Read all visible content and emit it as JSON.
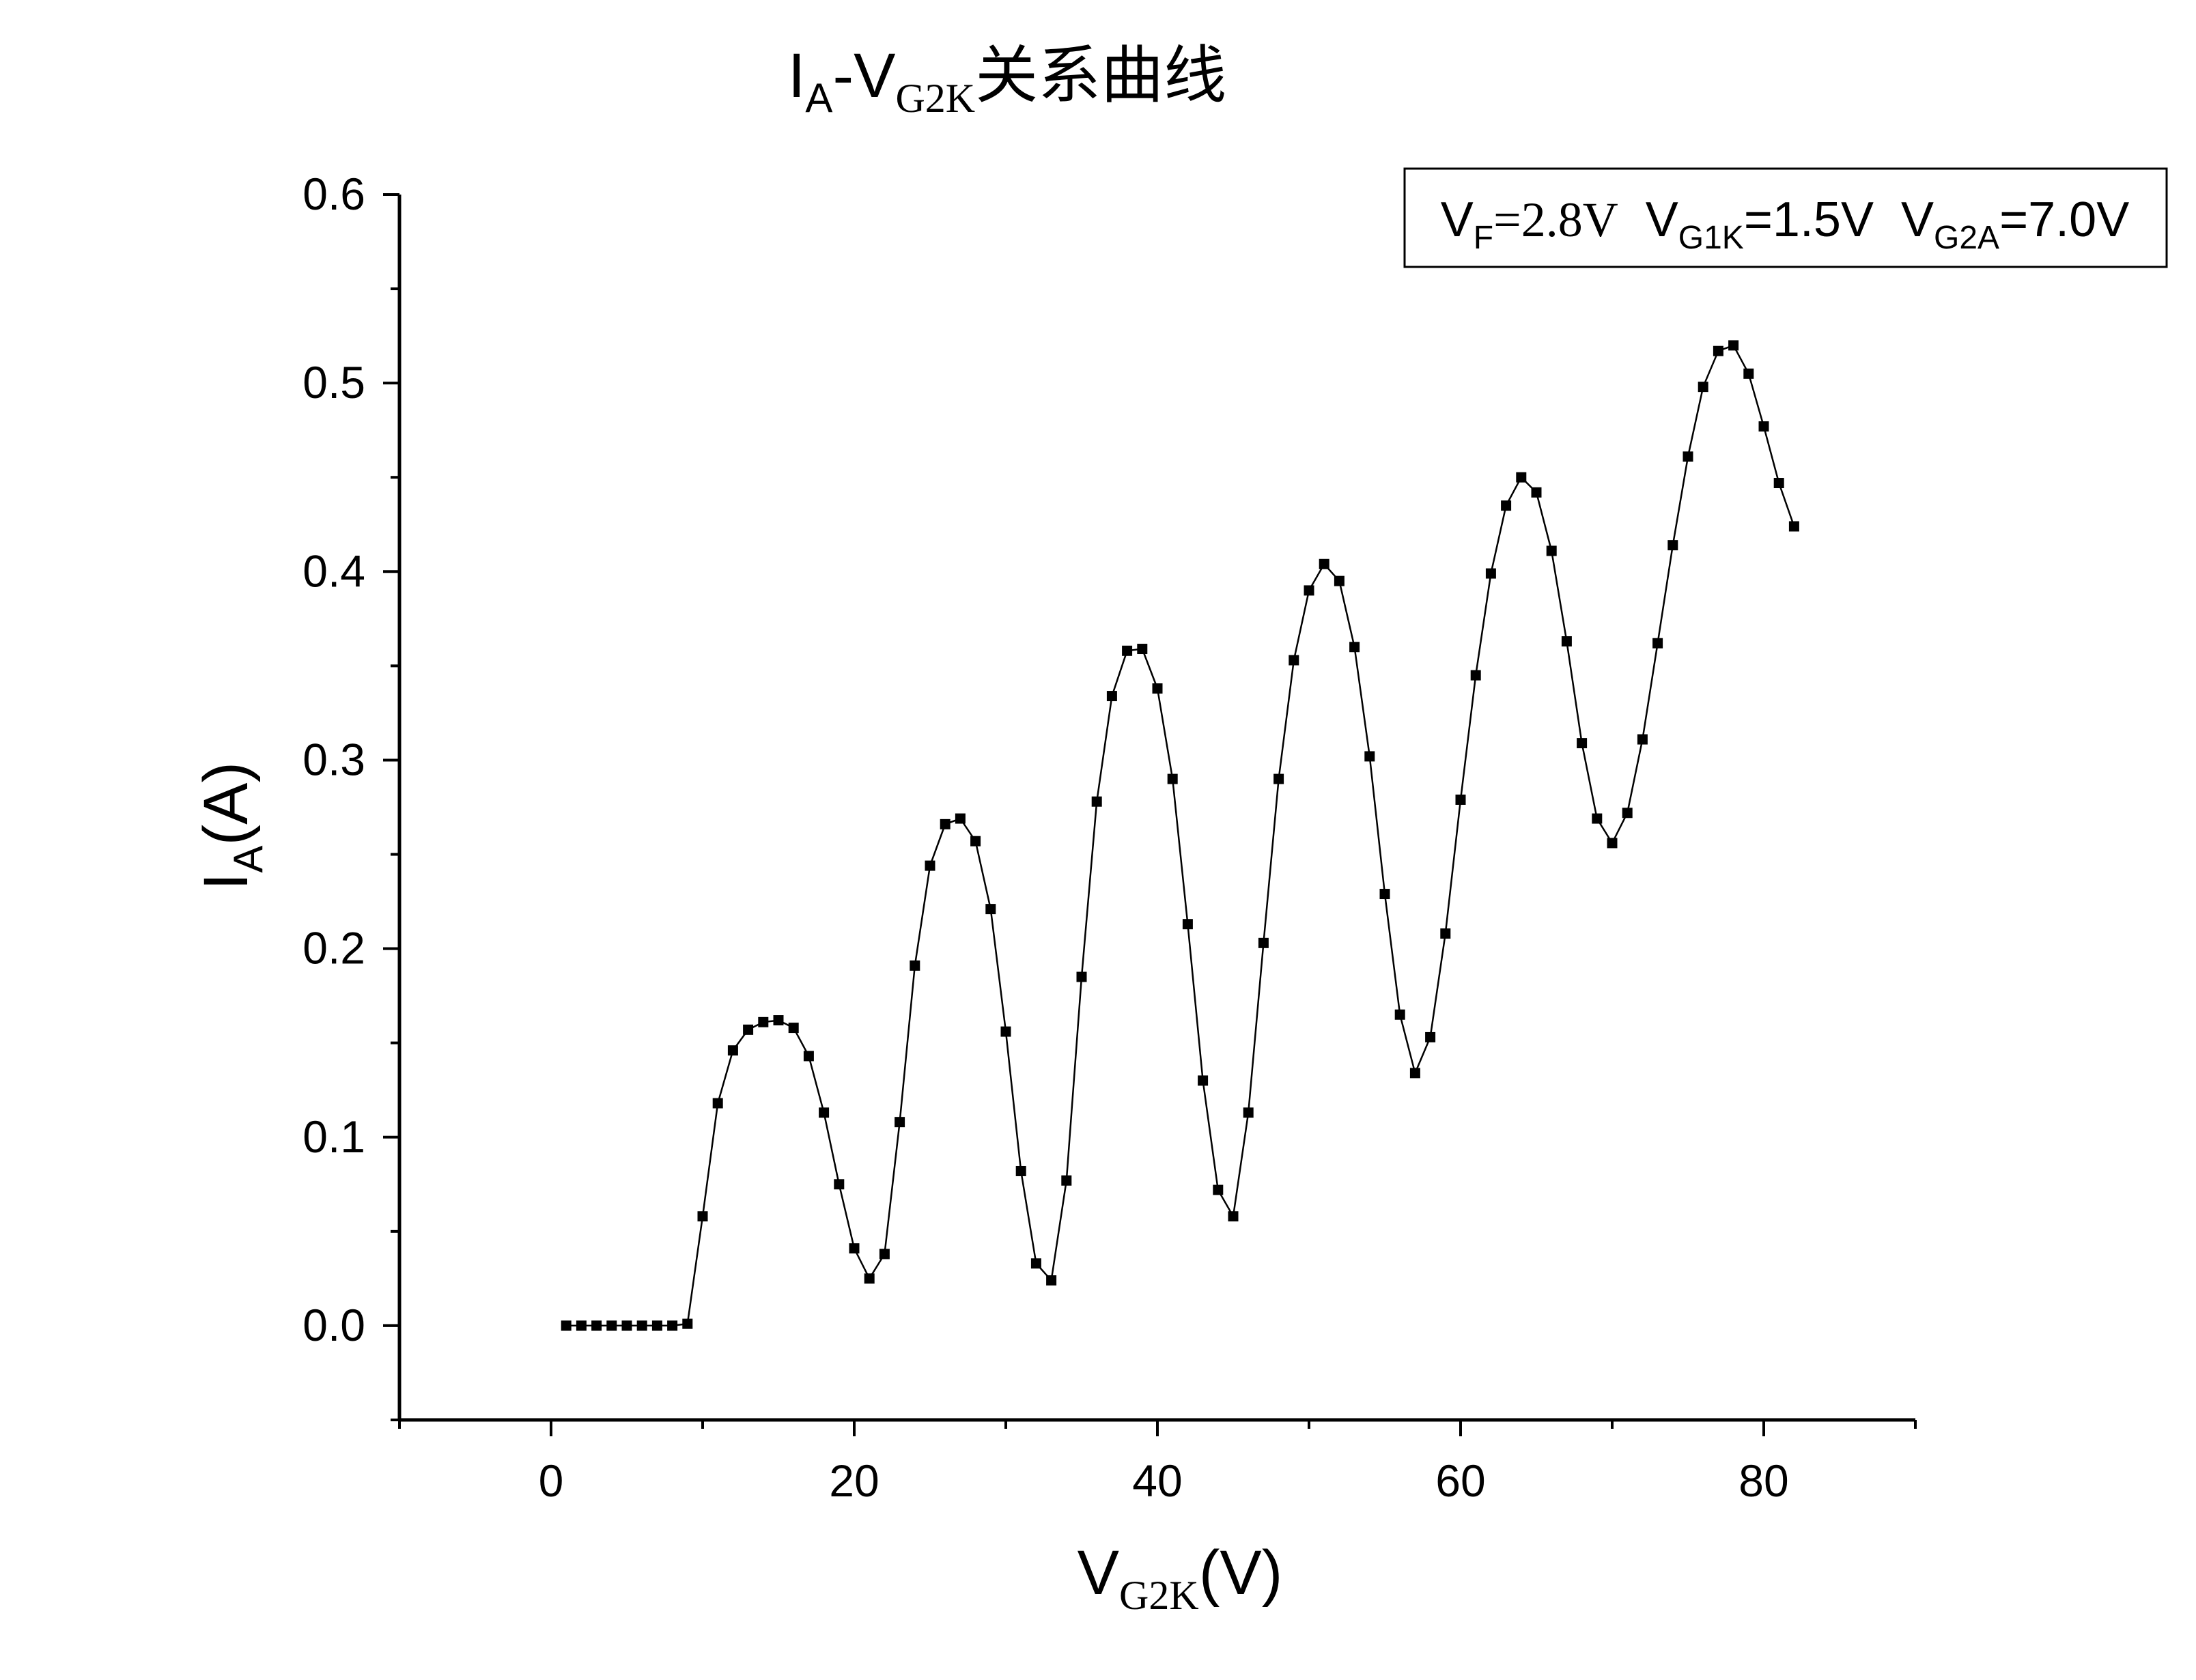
{
  "chart_data": {
    "type": "line",
    "title": {
      "main": "I",
      "main_sub": "A",
      "dash": "-V",
      "dash_sub": "G2K",
      "suffix": "关系曲线"
    },
    "xlabel": {
      "main": "V",
      "sub": "G2K",
      "suffix": "(V)"
    },
    "ylabel": {
      "main": "I",
      "sub": "A",
      "suffix": "(A)"
    },
    "xlim": [
      -10,
      90
    ],
    "ylim": [
      -0.05,
      0.6
    ],
    "xticks": [
      0,
      20,
      40,
      60,
      80
    ],
    "xtick_labels": [
      "0",
      "20",
      "40",
      "60",
      "80"
    ],
    "yticks": [
      0.0,
      0.1,
      0.2,
      0.3,
      0.4,
      0.5,
      0.6
    ],
    "ytick_labels": [
      "0.0",
      "0.1",
      "0.2",
      "0.3",
      "0.4",
      "0.5",
      "0.6"
    ],
    "grid": false,
    "legend": {
      "placement": "top-right",
      "parts": [
        {
          "main": "V",
          "sub": "F",
          "value": "=2.8V"
        },
        {
          "main": "V",
          "sub": "G1K",
          "value": "=1.5V"
        },
        {
          "main": "V",
          "sub": "G2A",
          "value": "=7.0V"
        }
      ]
    },
    "series": [
      {
        "x": [
          1,
          2,
          3,
          4,
          5,
          6,
          7,
          8,
          9,
          10,
          11,
          12,
          13,
          14,
          15,
          16,
          17,
          18,
          19,
          20,
          21,
          22,
          23,
          24,
          25,
          26,
          27,
          28,
          29,
          30,
          31,
          32,
          33,
          34,
          35,
          36,
          37,
          38,
          39,
          40,
          41,
          42,
          43,
          44,
          45,
          46,
          47,
          48,
          49,
          50,
          51,
          52,
          53,
          54,
          55,
          56,
          57,
          58,
          59,
          60,
          61,
          62,
          63,
          64,
          65,
          66,
          67,
          68,
          69,
          70,
          71,
          72,
          73,
          74,
          75,
          76,
          77,
          78,
          79,
          80,
          81,
          82
        ],
        "y": [
          0.0,
          0.0,
          0.0,
          0.0,
          0.0,
          0.0,
          0.0,
          0.0,
          0.001,
          0.058,
          0.118,
          0.146,
          0.157,
          0.161,
          0.162,
          0.158,
          0.143,
          0.113,
          0.075,
          0.041,
          0.025,
          0.038,
          0.108,
          0.191,
          0.244,
          0.266,
          0.269,
          0.257,
          0.221,
          0.156,
          0.082,
          0.033,
          0.024,
          0.077,
          0.185,
          0.278,
          0.334,
          0.358,
          0.359,
          0.338,
          0.29,
          0.213,
          0.13,
          0.072,
          0.058,
          0.113,
          0.203,
          0.29,
          0.353,
          0.39,
          0.404,
          0.395,
          0.36,
          0.302,
          0.229,
          0.165,
          0.134,
          0.153,
          0.208,
          0.279,
          0.345,
          0.399,
          0.435,
          0.45,
          0.442,
          0.411,
          0.363,
          0.309,
          0.269,
          0.256,
          0.272,
          0.311,
          0.362,
          0.414,
          0.461,
          0.498,
          0.517,
          0.52,
          0.505,
          0.477,
          0.447,
          0.424
        ],
        "color": "#000000",
        "marker": "square"
      }
    ]
  }
}
